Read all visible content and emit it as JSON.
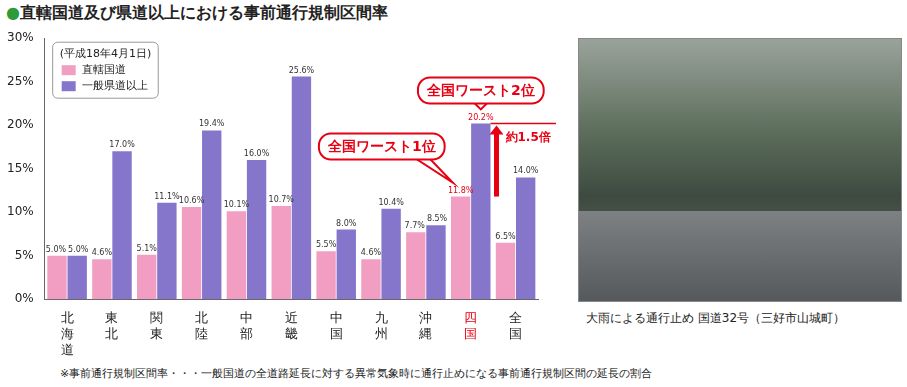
{
  "chart_data": {
    "type": "bar",
    "title": "●直轄国道及び県道以上における事前通行規制区間率",
    "subtitle": "(平成18年4月1日)",
    "categories": [
      "北海道",
      "東北",
      "関東",
      "北陸",
      "中部",
      "近畿",
      "中国",
      "九州",
      "沖縄",
      "四国",
      "全国"
    ],
    "series": [
      {
        "name": "直轄国道",
        "color": "#f19ec2",
        "values": [
          5.0,
          4.6,
          5.1,
          10.6,
          10.1,
          10.7,
          5.5,
          4.6,
          7.7,
          11.8,
          6.5
        ],
        "value_labels": [
          "5.0%",
          "4.6%",
          "5.1%",
          "10.6%",
          "10.1%",
          "10.7%",
          "5.5%",
          "4.6%",
          "7.7%",
          "11.8%",
          "6.5%"
        ]
      },
      {
        "name": "一般県道以上",
        "color": "#8576cc",
        "values": [
          5.0,
          17.0,
          11.1,
          19.4,
          16.0,
          25.6,
          8.0,
          10.4,
          8.5,
          20.2,
          14.0
        ],
        "value_labels": [
          "5.0%",
          "17.0%",
          "11.1%",
          "19.4%",
          "16.0%",
          "25.6%",
          "8.0%",
          "10.4%",
          "8.5%",
          "20.2%",
          "14.0%"
        ]
      }
    ],
    "ylim": [
      0,
      30
    ],
    "yticks": [
      {
        "value": 0,
        "label": "0%"
      },
      {
        "value": 5,
        "label": "5%"
      },
      {
        "value": 10,
        "label": "10%"
      },
      {
        "value": 15,
        "label": "15%"
      },
      {
        "value": 20,
        "label": "20%"
      },
      {
        "value": 25,
        "label": "25%"
      },
      {
        "value": 30,
        "label": "30%"
      }
    ],
    "grid": false,
    "legend": "upper left",
    "data_labels": true,
    "annotations": [
      {
        "text": "全国ワースト1位",
        "category": "四国",
        "series": "直轄国道"
      },
      {
        "text": "全国ワースト2位",
        "category": "四国",
        "series": "一般県道以上"
      },
      {
        "text": "約1.5倍",
        "category": "四国"
      }
    ],
    "footnote": "※事前通行規制区間率・・・一般国道の全道路延長に対する異常気象時に通行止めになる事前通行規制区間の延長の割合"
  },
  "photo": {
    "caption": "大雨による通行止め 国道32号（三好市山城町）"
  }
}
